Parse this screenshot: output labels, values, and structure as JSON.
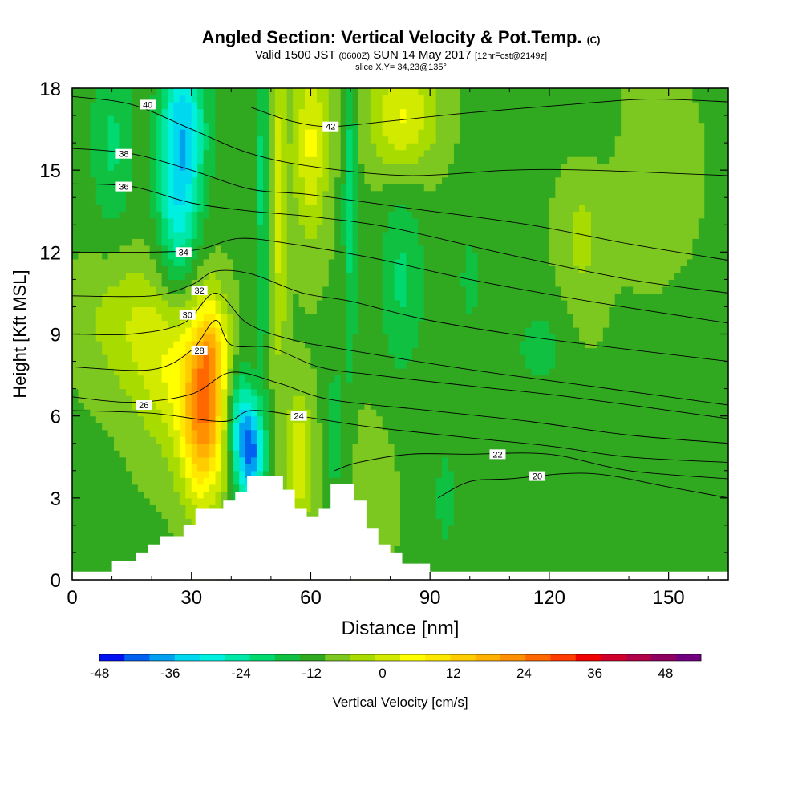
{
  "title": {
    "main": "Angled Section: Vertical Velocity & Pot.Temp.",
    "main_unit": "(C)",
    "valid_prefix": "Valid 1500 JST",
    "valid_utc": "(0600Z)",
    "valid_date": "SUN 14 May 2017",
    "forecast": "[12hrFcst@2149z]",
    "slice": "slice X,Y= 34,23@135°"
  },
  "chart_data": {
    "type": "heatmap",
    "xlabel": "Distance [nm]",
    "ylabel": "Height [Kft MSL]",
    "xlim": [
      0,
      165
    ],
    "ylim": [
      0,
      18
    ],
    "x_ticks": [
      0,
      30,
      60,
      90,
      120,
      150
    ],
    "y_ticks": [
      0,
      3,
      6,
      9,
      12,
      15,
      18
    ],
    "colorbar": {
      "label": "Vertical Velocity [cm/s]",
      "min": -48,
      "max": 54,
      "step": 6,
      "tick_labels": [
        "-48",
        "-36",
        "-24",
        "-12",
        "0",
        "12",
        "24",
        "36",
        "48"
      ],
      "colors": [
        "#0010f0",
        "#0060f0",
        "#00a0f0",
        "#00d8f0",
        "#00f0e0",
        "#00e8a8",
        "#00d870",
        "#10c040",
        "#30a820",
        "#7cc820",
        "#a8dc00",
        "#d2ea00",
        "#ffff00",
        "#ffe800",
        "#ffcc00",
        "#ffb000",
        "#ff9000",
        "#ff6800",
        "#ff3c00",
        "#f00000",
        "#d0002c",
        "#b00048",
        "#900060",
        "#700080"
      ]
    },
    "terrain_profile": [
      [
        0,
        0.3
      ],
      [
        10,
        0.3
      ],
      [
        10,
        0.7
      ],
      [
        16,
        0.7
      ],
      [
        16,
        1.0
      ],
      [
        19,
        1.0
      ],
      [
        19,
        1.3
      ],
      [
        22,
        1.3
      ],
      [
        22,
        1.6
      ],
      [
        28,
        1.6
      ],
      [
        28,
        2.0
      ],
      [
        31,
        2.0
      ],
      [
        31,
        2.6
      ],
      [
        38,
        2.6
      ],
      [
        38,
        2.9
      ],
      [
        41,
        2.9
      ],
      [
        41,
        3.2
      ],
      [
        44,
        3.2
      ],
      [
        44,
        3.8
      ],
      [
        53,
        3.8
      ],
      [
        53,
        3.3
      ],
      [
        56,
        3.3
      ],
      [
        56,
        2.6
      ],
      [
        59,
        2.6
      ],
      [
        59,
        2.3
      ],
      [
        62,
        2.3
      ],
      [
        62,
        2.6
      ],
      [
        65,
        2.6
      ],
      [
        65,
        3.5
      ],
      [
        71,
        3.5
      ],
      [
        71,
        2.9
      ],
      [
        74,
        2.9
      ],
      [
        74,
        1.9
      ],
      [
        77,
        1.9
      ],
      [
        77,
        1.3
      ],
      [
        80,
        1.3
      ],
      [
        80,
        1.0
      ],
      [
        83,
        1.0
      ],
      [
        83,
        0.6
      ],
      [
        90,
        0.6
      ],
      [
        90,
        0.3
      ],
      [
        165,
        0.3
      ]
    ],
    "velocity_features": [
      {
        "x": 33,
        "y": 6.0,
        "sx": 4,
        "sy": 2.2,
        "w": 44
      },
      {
        "x": 35,
        "y": 8.5,
        "sx": 3,
        "sy": 1.5,
        "w": 20
      },
      {
        "x": 24,
        "y": 8.0,
        "sx": 6,
        "sy": 2.2,
        "w": 18
      },
      {
        "x": 12,
        "y": 9.5,
        "sx": 7,
        "sy": 1.8,
        "w": 10
      },
      {
        "x": 45,
        "y": 4.6,
        "sx": 2.4,
        "sy": 1.3,
        "w": -38
      },
      {
        "x": 42,
        "y": 5.8,
        "sx": 2.5,
        "sy": 1.4,
        "w": -22
      },
      {
        "x": 28,
        "y": 16.5,
        "sx": 4,
        "sy": 2.5,
        "w": -30
      },
      {
        "x": 26,
        "y": 13.0,
        "sx": 3.5,
        "sy": 2.5,
        "w": -16
      },
      {
        "x": 10,
        "y": 16.0,
        "sx": 4,
        "sy": 2.5,
        "w": -12
      },
      {
        "x": 48,
        "y": 14.5,
        "sx": 1.3,
        "sy": 4.5,
        "w": -14
      },
      {
        "x": 52,
        "y": 14.0,
        "sx": 1.5,
        "sy": 4.5,
        "w": 16
      },
      {
        "x": 60,
        "y": 16.0,
        "sx": 3,
        "sy": 2.5,
        "w": 20
      },
      {
        "x": 70,
        "y": 14.5,
        "sx": 1.3,
        "sy": 5,
        "w": -14
      },
      {
        "x": 83,
        "y": 17.0,
        "sx": 6,
        "sy": 1.5,
        "w": 20
      },
      {
        "x": 57,
        "y": 4.3,
        "sx": 2.5,
        "sy": 1.8,
        "w": 18
      },
      {
        "x": 66,
        "y": 5.5,
        "sx": 1.5,
        "sy": 1.5,
        "w": -12
      },
      {
        "x": 83,
        "y": 11.0,
        "sx": 4,
        "sy": 2.5,
        "w": -12
      },
      {
        "x": 100,
        "y": 11.0,
        "sx": 3,
        "sy": 2,
        "w": -6
      },
      {
        "x": 118,
        "y": 8.5,
        "sx": 6,
        "sy": 1.3,
        "w": -7
      },
      {
        "x": 128,
        "y": 12.5,
        "sx": 4,
        "sy": 2.5,
        "w": 8
      },
      {
        "x": 145,
        "y": 15.0,
        "sx": 8,
        "sy": 2.5,
        "w": 5
      },
      {
        "x": 130,
        "y": 16.5,
        "sx": 6,
        "sy": 1.5,
        "w": -4
      },
      {
        "x": 94,
        "y": 3.0,
        "sx": 2,
        "sy": 1.5,
        "w": -8
      },
      {
        "x": 135,
        "y": 2.5,
        "sx": 12,
        "sy": 1.5,
        "w": -4
      },
      {
        "x": 75,
        "y": 3.0,
        "sx": 4,
        "sy": 2,
        "w": 6
      }
    ],
    "isentropes": [
      {
        "theta": 20,
        "label": "20",
        "label_at": [
          117,
          3.8
        ],
        "points": [
          [
            92,
            3.0
          ],
          [
            100,
            3.6
          ],
          [
            110,
            3.7
          ],
          [
            130,
            3.9
          ],
          [
            150,
            3.4
          ],
          [
            165,
            3.0
          ]
        ]
      },
      {
        "theta": 22,
        "label": "22",
        "label_at": [
          107,
          4.6
        ],
        "points": [
          [
            66,
            4.0
          ],
          [
            72,
            4.3
          ],
          [
            85,
            4.6
          ],
          [
            100,
            4.6
          ],
          [
            120,
            4.6
          ],
          [
            140,
            4.0
          ],
          [
            165,
            3.7
          ]
        ]
      },
      {
        "theta": 24,
        "label": "24",
        "label_at": [
          57,
          6.0
        ],
        "points": [
          [
            0,
            6.2
          ],
          [
            20,
            6.1
          ],
          [
            38,
            5.8
          ],
          [
            45,
            6.2
          ],
          [
            57,
            6.0
          ],
          [
            75,
            5.6
          ],
          [
            100,
            5.2
          ],
          [
            120,
            4.9
          ],
          [
            140,
            4.5
          ],
          [
            165,
            4.3
          ]
        ]
      },
      {
        "theta": 26,
        "label": "26",
        "label_at": [
          18,
          6.4
        ],
        "points": [
          [
            0,
            6.7
          ],
          [
            15,
            6.5
          ],
          [
            30,
            6.8
          ],
          [
            40,
            7.6
          ],
          [
            52,
            7.2
          ],
          [
            65,
            6.6
          ],
          [
            90,
            6.2
          ],
          [
            115,
            5.8
          ],
          [
            140,
            5.3
          ],
          [
            165,
            5.0
          ]
        ]
      },
      {
        "theta": 28,
        "label": "28",
        "label_at": [
          32,
          8.4
        ],
        "points": [
          [
            0,
            7.8
          ],
          [
            20,
            7.7
          ],
          [
            30,
            8.4
          ],
          [
            36,
            9.5
          ],
          [
            40,
            8.6
          ],
          [
            50,
            8.5
          ],
          [
            62,
            7.8
          ],
          [
            76,
            7.5
          ],
          [
            100,
            7.1
          ],
          [
            125,
            6.7
          ],
          [
            165,
            5.9
          ]
        ]
      },
      {
        "theta": 30,
        "label": "30",
        "label_at": [
          29,
          9.7
        ],
        "points": [
          [
            0,
            9.0
          ],
          [
            15,
            9.0
          ],
          [
            28,
            9.4
          ],
          [
            36,
            10.5
          ],
          [
            44,
            9.4
          ],
          [
            55,
            8.8
          ],
          [
            70,
            8.4
          ],
          [
            100,
            7.7
          ],
          [
            130,
            7.1
          ],
          [
            165,
            6.4
          ]
        ]
      },
      {
        "theta": 32,
        "label": "32",
        "label_at": [
          32,
          10.6
        ],
        "points": [
          [
            0,
            10.4
          ],
          [
            20,
            10.4
          ],
          [
            30,
            10.8
          ],
          [
            36,
            11.3
          ],
          [
            45,
            11.2
          ],
          [
            58,
            10.5
          ],
          [
            70,
            10.2
          ],
          [
            90,
            9.5
          ],
          [
            120,
            8.8
          ],
          [
            165,
            8.0
          ]
        ]
      },
      {
        "theta": 34,
        "label": "34",
        "label_at": [
          28,
          12.0
        ],
        "points": [
          [
            0,
            12.0
          ],
          [
            20,
            12.0
          ],
          [
            32,
            12.1
          ],
          [
            42,
            12.5
          ],
          [
            55,
            12.3
          ],
          [
            75,
            11.8
          ],
          [
            100,
            11.0
          ],
          [
            130,
            10.2
          ],
          [
            165,
            9.4
          ]
        ]
      },
      {
        "theta": 36,
        "label": "36",
        "label_at": [
          13,
          14.4
        ],
        "points": [
          [
            0,
            14.5
          ],
          [
            15,
            14.4
          ],
          [
            30,
            13.8
          ],
          [
            45,
            13.5
          ],
          [
            60,
            13.3
          ],
          [
            80,
            12.9
          ],
          [
            110,
            11.9
          ],
          [
            140,
            11.0
          ],
          [
            165,
            10.5
          ]
        ]
      },
      {
        "theta": 38,
        "label": "38",
        "label_at": [
          13,
          15.6
        ],
        "points": [
          [
            0,
            15.8
          ],
          [
            15,
            15.6
          ],
          [
            30,
            15.0
          ],
          [
            45,
            14.3
          ],
          [
            60,
            14.1
          ],
          [
            85,
            13.6
          ],
          [
            115,
            13.0
          ],
          [
            140,
            12.3
          ],
          [
            165,
            11.7
          ]
        ]
      },
      {
        "theta": 40,
        "label": "40",
        "label_at": [
          19,
          17.4
        ],
        "points": [
          [
            0,
            17.7
          ],
          [
            15,
            17.4
          ],
          [
            30,
            16.5
          ],
          [
            45,
            15.6
          ],
          [
            62,
            15.1
          ],
          [
            85,
            14.8
          ],
          [
            110,
            15.0
          ],
          [
            130,
            15.0
          ],
          [
            165,
            14.8
          ]
        ]
      },
      {
        "theta": 42,
        "label": "42",
        "label_at": [
          65,
          16.6
        ],
        "points": [
          [
            45,
            17.3
          ],
          [
            55,
            16.8
          ],
          [
            65,
            16.6
          ],
          [
            80,
            16.8
          ],
          [
            100,
            17.1
          ],
          [
            125,
            17.4
          ],
          [
            145,
            17.6
          ],
          [
            165,
            17.5
          ]
        ]
      }
    ]
  }
}
